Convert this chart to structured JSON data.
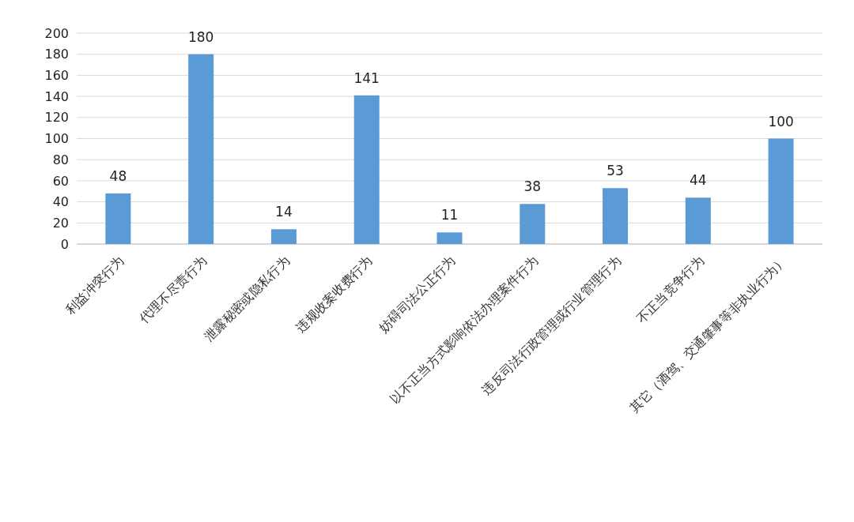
{
  "chart_data": {
    "type": "bar",
    "categories": [
      "利益冲突行为",
      "代理不尽责行为",
      "泄露秘密或隐私行为",
      "违规收案收费行为",
      "妨碍司法公正行为",
      "以不正当方式影响依法办理案件行为",
      "违反司法行政管理或行业管理行为",
      "不正当竞争行为",
      "其它（酒驾、交通肇事等非执业行为）"
    ],
    "values": [
      48,
      180,
      14,
      141,
      11,
      38,
      53,
      44,
      100
    ],
    "color": "#5b9bd5",
    "ylim": [
      0,
      200
    ],
    "yticks": [
      0,
      20,
      40,
      60,
      80,
      100,
      120,
      140,
      160,
      180,
      200
    ],
    "grid": "y",
    "data_labels": true
  }
}
